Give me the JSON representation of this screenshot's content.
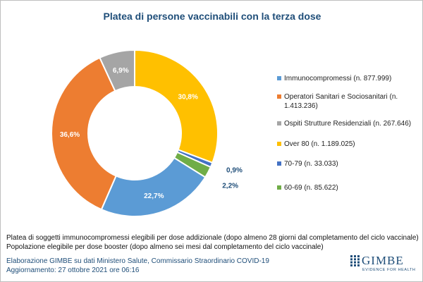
{
  "title": "Platea di persone vaccinabili con la terza dose",
  "chart_data": {
    "type": "pie",
    "title": "Platea di persone vaccinabili con la terza dose",
    "donut": true,
    "slices": [
      {
        "label": "Over 80 (n. 1.189.025)",
        "value": 30.8,
        "pct_label": "30,8%",
        "color": "#FFC000"
      },
      {
        "label": "70-79 (n. 33.033)",
        "value": 0.9,
        "pct_label": "0,9%",
        "color": "#4472C4"
      },
      {
        "label": "60-69 (n. 85.622)",
        "value": 2.2,
        "pct_label": "2,2%",
        "color": "#70AD47"
      },
      {
        "label": "Immunocompromessi (n. 877.999)",
        "value": 22.7,
        "pct_label": "22,7%",
        "color": "#5B9BD5"
      },
      {
        "label": "Operatori Sanitari e Sociosanitari (n. 1.413.236)",
        "value": 36.6,
        "pct_label": "36,6%",
        "color": "#ED7D31"
      },
      {
        "label": "Ospiti Strutture Residenziali (n. 267.646)",
        "value": 6.9,
        "pct_label": "6,9%",
        "color": "#A5A5A5"
      }
    ],
    "legend_order": [
      "Immunocompromessi (n. 877.999)",
      "Operatori Sanitari e Sociosanitari (n. 1.413.236)",
      "Ospiti Strutture Residenziali (n. 267.646)",
      "Over 80 (n. 1.189.025)",
      "70-79 (n. 33.033)",
      "60-69 (n. 85.622)"
    ],
    "legend_position": "right"
  },
  "notes": [
    "Platea di soggetti immunocompromessi elegibili per dose addizionale (dopo almeno 28 giorni dal completamento del ciclo vaccinale)",
    "Popolazione elegibile per dose booster (dopo almeno sei mesi dal completamento del ciclo vaccinale)"
  ],
  "footer": {
    "source": "Elaborazione GIMBE su dati Ministero Salute, Commissario Straordinario COVID-19",
    "updated": "Aggiornamento: 27 ottobre 2021 ore 06:16"
  },
  "logo": {
    "name": "GIMBE",
    "tagline": "EVIDENCE FOR HEALTH",
    "color": "#1f4e79"
  }
}
